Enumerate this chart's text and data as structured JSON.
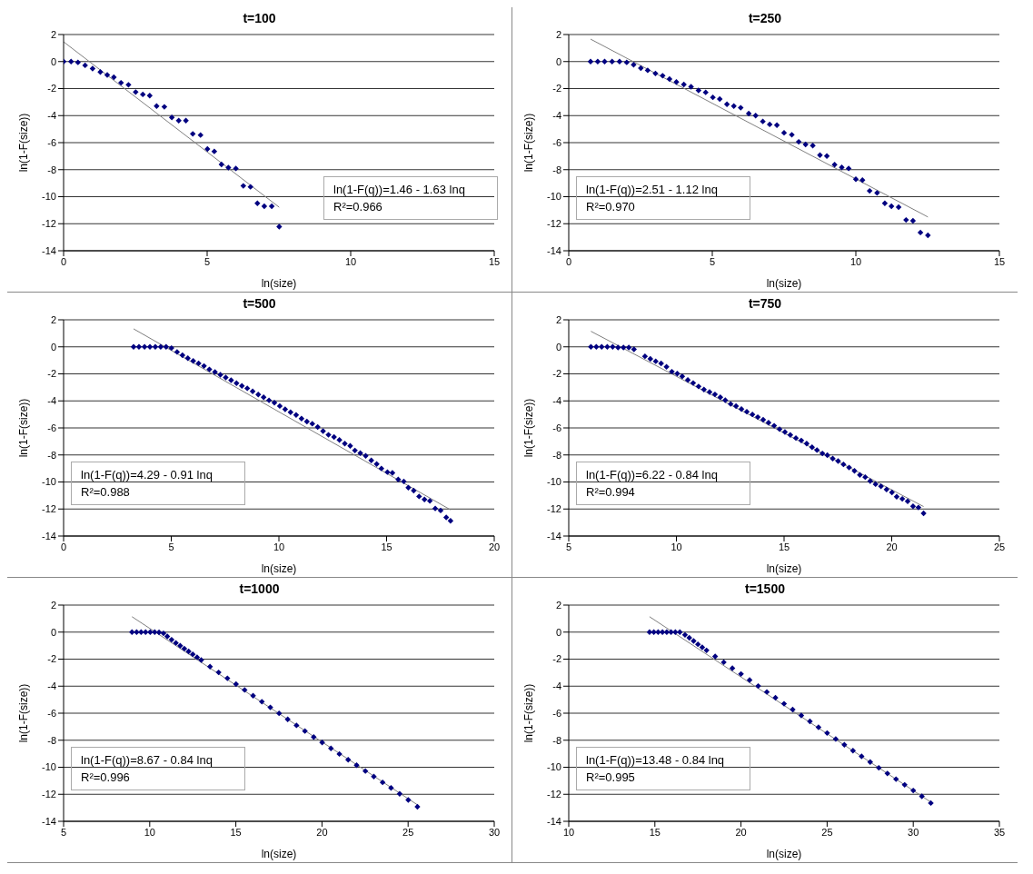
{
  "chart_data": [
    {
      "type": "scatter",
      "title": "t=100",
      "xlabel": "ln(size)",
      "ylabel": "ln(1-F(size))",
      "annotations": [
        "ln(1-F(q))=1.46 - 1.63 lnq",
        "R²=0.966"
      ],
      "xlim": [
        0,
        15
      ],
      "xticks": [
        0,
        5,
        10,
        15
      ],
      "ylim": [
        -14,
        2
      ],
      "yticks": [
        -14,
        -12,
        -10,
        -8,
        -6,
        -4,
        -2,
        0,
        2
      ],
      "grid": "y",
      "marker": "diamond",
      "legend": false,
      "series": [
        {
          "type": "scatter",
          "color": "#000080",
          "x": [
            0,
            0.26,
            0.5,
            0.75,
            1.01,
            1.28,
            1.52,
            1.75,
            2.0,
            2.26,
            2.51,
            2.76,
            3.0,
            3.24,
            3.51,
            3.77,
            4.01,
            4.26,
            4.5,
            4.77,
            5.01,
            5.25,
            5.5,
            5.74,
            6.0,
            6.26,
            6.51,
            6.75,
            6.99,
            7.25,
            7.51
          ],
          "values": [
            0,
            0,
            -0.06,
            -0.28,
            -0.52,
            -0.77,
            -0.99,
            -1.16,
            -1.57,
            -1.72,
            -2.26,
            -2.43,
            -2.52,
            -3.29,
            -3.35,
            -4.13,
            -4.37,
            -4.37,
            -5.35,
            -5.44,
            -6.47,
            -6.65,
            -7.61,
            -7.85,
            -7.91,
            -9.2,
            -9.27,
            -10.49,
            -10.71,
            -10.71,
            -12.22
          ]
        },
        {
          "type": "line",
          "marker": "none",
          "color": "#808080",
          "x": [
            0,
            7.51
          ],
          "values": [
            1.46,
            -10.78
          ]
        }
      ]
    },
    {
      "type": "scatter",
      "title": "t=250",
      "xlabel": "ln(size)",
      "ylabel": "ln(1-F(size))",
      "annotations": [
        "ln(1-F(q))=2.51 - 1.12 lnq",
        "R²=0.970"
      ],
      "xlim": [
        0,
        15
      ],
      "xticks": [
        0,
        5,
        10,
        15
      ],
      "ylim": [
        -14,
        2
      ],
      "yticks": [
        -14,
        -12,
        -10,
        -8,
        -6,
        -4,
        -2,
        0,
        2
      ],
      "grid": "y",
      "marker": "diamond",
      "legend": false,
      "series": [
        {
          "type": "scatter",
          "color": "#000080",
          "x": [
            0.76,
            1.01,
            1.25,
            1.51,
            1.77,
            2.02,
            2.26,
            2.51,
            2.75,
            3.02,
            3.27,
            3.51,
            3.75,
            4.01,
            4.26,
            4.52,
            4.77,
            5.02,
            5.26,
            5.51,
            5.75,
            5.99,
            6.27,
            6.51,
            6.76,
            7.0,
            7.25,
            7.5,
            7.77,
            8.01,
            8.25,
            8.5,
            8.75,
            8.99,
            9.26,
            9.51,
            9.75,
            10.0,
            10.23,
            10.48,
            10.74,
            11.01,
            11.24,
            11.49,
            11.75,
            11.99,
            12.25,
            12.51
          ],
          "values": [
            0,
            0,
            0,
            0,
            0,
            -0.06,
            -0.24,
            -0.49,
            -0.65,
            -0.88,
            -1.05,
            -1.29,
            -1.51,
            -1.7,
            -1.87,
            -2.13,
            -2.28,
            -2.65,
            -2.77,
            -3.16,
            -3.29,
            -3.42,
            -3.85,
            -4.0,
            -4.43,
            -4.65,
            -4.71,
            -5.27,
            -5.42,
            -5.94,
            -6.13,
            -6.22,
            -6.92,
            -6.99,
            -7.63,
            -7.83,
            -7.91,
            -8.71,
            -8.77,
            -9.57,
            -9.72,
            -10.49,
            -10.71,
            -10.77,
            -11.72,
            -11.78,
            -12.65,
            -12.86
          ]
        },
        {
          "type": "line",
          "marker": "none",
          "color": "#808080",
          "x": [
            0.76,
            12.51
          ],
          "values": [
            1.66,
            -11.5
          ]
        }
      ]
    },
    {
      "type": "scatter",
      "title": "t=500",
      "xlabel": "ln(size)",
      "ylabel": "ln(1-F(size))",
      "annotations": [
        "ln(1-F(q))=4.29 - 0.91 lnq",
        "R²=0.988"
      ],
      "xlim": [
        0,
        20
      ],
      "xticks": [
        0,
        5,
        10,
        15,
        20
      ],
      "ylim": [
        -14,
        2
      ],
      "yticks": [
        -14,
        -12,
        -10,
        -8,
        -6,
        -4,
        -2,
        0,
        2
      ],
      "grid": "y",
      "marker": "diamond",
      "legend": false,
      "series": [
        {
          "type": "scatter",
          "color": "#000080",
          "x": [
            3.25,
            3.5,
            3.76,
            4.01,
            4.26,
            4.51,
            4.76,
            5.01,
            5.27,
            5.52,
            5.77,
            6.02,
            6.27,
            6.52,
            6.77,
            7.03,
            7.28,
            7.53,
            7.78,
            8.03,
            8.28,
            8.53,
            8.78,
            9.04,
            9.29,
            9.54,
            9.79,
            10.04,
            10.29,
            10.54,
            10.8,
            11.05,
            11.3,
            11.55,
            11.8,
            12.05,
            12.3,
            12.56,
            12.81,
            13.06,
            13.31,
            13.53,
            13.78,
            14.03,
            14.29,
            14.54,
            14.76,
            15.04,
            15.27,
            15.54,
            15.8,
            16.01,
            16.26,
            16.51,
            16.76,
            17.01,
            17.26,
            17.51,
            17.77,
            17.97
          ],
          "values": [
            0,
            0,
            0,
            0,
            0,
            0,
            0,
            -0.09,
            -0.38,
            -0.62,
            -0.84,
            -1.04,
            -1.22,
            -1.42,
            -1.67,
            -1.87,
            -2.07,
            -2.27,
            -2.47,
            -2.69,
            -2.89,
            -3.07,
            -3.29,
            -3.53,
            -3.73,
            -3.96,
            -4.13,
            -4.38,
            -4.62,
            -4.84,
            -5.04,
            -5.31,
            -5.53,
            -5.69,
            -5.93,
            -6.24,
            -6.51,
            -6.67,
            -6.89,
            -7.16,
            -7.33,
            -7.67,
            -7.87,
            -8.07,
            -8.4,
            -8.67,
            -9.0,
            -9.27,
            -9.33,
            -9.82,
            -9.96,
            -10.42,
            -10.64,
            -11.07,
            -11.29,
            -11.4,
            -11.96,
            -12.11,
            -12.62,
            -12.87
          ]
        },
        {
          "type": "line",
          "marker": "none",
          "color": "#808080",
          "x": [
            3.25,
            17.97
          ],
          "values": [
            1.33,
            -12.06
          ]
        }
      ]
    },
    {
      "type": "scatter",
      "title": "t=750",
      "xlabel": "ln(size)",
      "ylabel": "ln(1-F(size))",
      "annotations": [
        "ln(1-F(q))=6.22 - 0.84 lnq",
        "R²=0.994"
      ],
      "xlim": [
        5,
        25
      ],
      "xticks": [
        5,
        10,
        15,
        20,
        25
      ],
      "ylim": [
        -14,
        2
      ],
      "yticks": [
        -14,
        -12,
        -10,
        -8,
        -6,
        -4,
        -2,
        0,
        2
      ],
      "grid": "y",
      "marker": "diamond",
      "legend": false,
      "series": [
        {
          "type": "scatter",
          "color": "#000080",
          "x": [
            6.03,
            6.28,
            6.53,
            6.79,
            7.04,
            7.29,
            7.54,
            7.79,
            8.03,
            8.54,
            8.79,
            9.04,
            9.29,
            9.54,
            9.79,
            10.04,
            10.27,
            10.53,
            10.78,
            11.03,
            11.28,
            11.54,
            11.79,
            12.04,
            12.27,
            12.52,
            12.77,
            13.02,
            13.27,
            13.53,
            13.78,
            14.03,
            14.28,
            14.54,
            14.79,
            15.04,
            15.29,
            15.55,
            15.8,
            16.05,
            16.3,
            16.53,
            16.78,
            17.01,
            17.26,
            17.51,
            17.76,
            18.02,
            18.27,
            18.52,
            18.77,
            19.0,
            19.25,
            19.5,
            19.76,
            20.01,
            20.23,
            20.49,
            20.74,
            20.99,
            21.24,
            21.48
          ],
          "values": [
            0,
            0,
            0,
            0,
            0,
            -0.05,
            -0.05,
            -0.05,
            -0.18,
            -0.7,
            -0.89,
            -1.07,
            -1.23,
            -1.48,
            -1.84,
            -1.98,
            -2.18,
            -2.45,
            -2.68,
            -2.93,
            -3.16,
            -3.34,
            -3.52,
            -3.73,
            -3.95,
            -4.23,
            -4.39,
            -4.61,
            -4.8,
            -5.0,
            -5.2,
            -5.39,
            -5.61,
            -5.84,
            -6.09,
            -6.3,
            -6.52,
            -6.75,
            -6.93,
            -7.16,
            -7.43,
            -7.64,
            -7.89,
            -8.02,
            -8.27,
            -8.45,
            -8.7,
            -8.93,
            -9.18,
            -9.48,
            -9.64,
            -9.93,
            -10.16,
            -10.32,
            -10.55,
            -10.77,
            -11.09,
            -11.25,
            -11.43,
            -11.8,
            -11.89,
            -12.32
          ]
        },
        {
          "type": "line",
          "marker": "none",
          "color": "#808080",
          "x": [
            6.03,
            21.48
          ],
          "values": [
            1.15,
            -11.82
          ]
        }
      ]
    },
    {
      "type": "scatter",
      "title": "t=1000",
      "xlabel": "ln(size)",
      "ylabel": "ln(1-F(size))",
      "annotations": [
        "ln(1-F(q))=8.67 - 0.84 lnq",
        "R²=0.996"
      ],
      "xlim": [
        5,
        30
      ],
      "xticks": [
        5,
        10,
        15,
        20,
        25,
        30
      ],
      "ylim": [
        -14,
        2
      ],
      "yticks": [
        -14,
        -12,
        -10,
        -8,
        -6,
        -4,
        -2,
        0,
        2
      ],
      "grid": "y",
      "marker": "diamond",
      "legend": false,
      "series": [
        {
          "type": "scatter",
          "color": "#000080",
          "x": [
            8.97,
            9.24,
            9.5,
            9.76,
            10.03,
            10.29,
            10.54,
            10.8,
            11.02,
            11.27,
            11.52,
            11.77,
            12.01,
            12.26,
            12.5,
            12.75,
            12.99,
            13.5,
            14.0,
            14.51,
            15.01,
            15.51,
            16.0,
            16.51,
            17.0,
            17.51,
            18.01,
            18.52,
            19.01,
            19.52,
            20.01,
            20.52,
            21.01,
            21.52,
            22.01,
            22.52,
            23.01,
            23.52,
            24.01,
            24.51,
            25.01,
            25.54
          ],
          "values": [
            0,
            0,
            0,
            0,
            0,
            0,
            -0.02,
            -0.09,
            -0.32,
            -0.56,
            -0.8,
            -1.01,
            -1.22,
            -1.43,
            -1.64,
            -1.86,
            -2.07,
            -2.55,
            -2.98,
            -3.42,
            -3.85,
            -4.28,
            -4.71,
            -5.15,
            -5.57,
            -6.01,
            -6.45,
            -6.9,
            -7.32,
            -7.76,
            -8.17,
            -8.6,
            -9.02,
            -9.45,
            -9.85,
            -10.28,
            -10.69,
            -11.12,
            -11.53,
            -11.97,
            -12.42,
            -12.92
          ]
        },
        {
          "type": "line",
          "marker": "none",
          "color": "#808080",
          "x": [
            8.97,
            25.54
          ],
          "values": [
            1.14,
            -12.78
          ]
        }
      ]
    },
    {
      "type": "scatter",
      "title": "t=1500",
      "xlabel": "ln(size)",
      "ylabel": "ln(1-F(size))",
      "annotations": [
        "ln(1-F(q))=13.48 - 0.84 lnq",
        "R²=0.995"
      ],
      "xlim": [
        10,
        35
      ],
      "xticks": [
        10,
        15,
        20,
        25,
        30,
        35
      ],
      "ylim": [
        -14,
        2
      ],
      "yticks": [
        -14,
        -12,
        -10,
        -8,
        -6,
        -4,
        -2,
        0,
        2
      ],
      "grid": "y",
      "marker": "diamond",
      "legend": false,
      "series": [
        {
          "type": "scatter",
          "color": "#000080",
          "x": [
            14.69,
            14.94,
            15.19,
            15.44,
            15.69,
            15.94,
            16.19,
            16.45,
            16.75,
            17.0,
            17.25,
            17.5,
            17.75,
            18.0,
            18.5,
            19.0,
            19.5,
            20.0,
            20.5,
            21.0,
            21.5,
            22.0,
            22.5,
            23.0,
            23.5,
            24.0,
            24.5,
            25.0,
            25.5,
            26.0,
            26.5,
            27.0,
            27.5,
            28.0,
            28.5,
            29.0,
            29.5,
            30.0,
            30.5,
            31.02
          ],
          "values": [
            0,
            0,
            0,
            0,
            0,
            0,
            0,
            0,
            -0.21,
            -0.42,
            -0.66,
            -0.9,
            -1.13,
            -1.35,
            -1.8,
            -2.23,
            -2.67,
            -3.1,
            -3.55,
            -3.99,
            -4.43,
            -4.86,
            -5.3,
            -5.73,
            -6.17,
            -6.6,
            -7.04,
            -7.47,
            -7.91,
            -8.34,
            -8.77,
            -9.19,
            -9.61,
            -10.04,
            -10.46,
            -10.88,
            -11.3,
            -11.72,
            -12.15,
            -12.65
          ]
        },
        {
          "type": "line",
          "marker": "none",
          "color": "#808080",
          "x": [
            14.69,
            31.02
          ],
          "values": [
            1.14,
            -12.58
          ]
        }
      ]
    }
  ]
}
